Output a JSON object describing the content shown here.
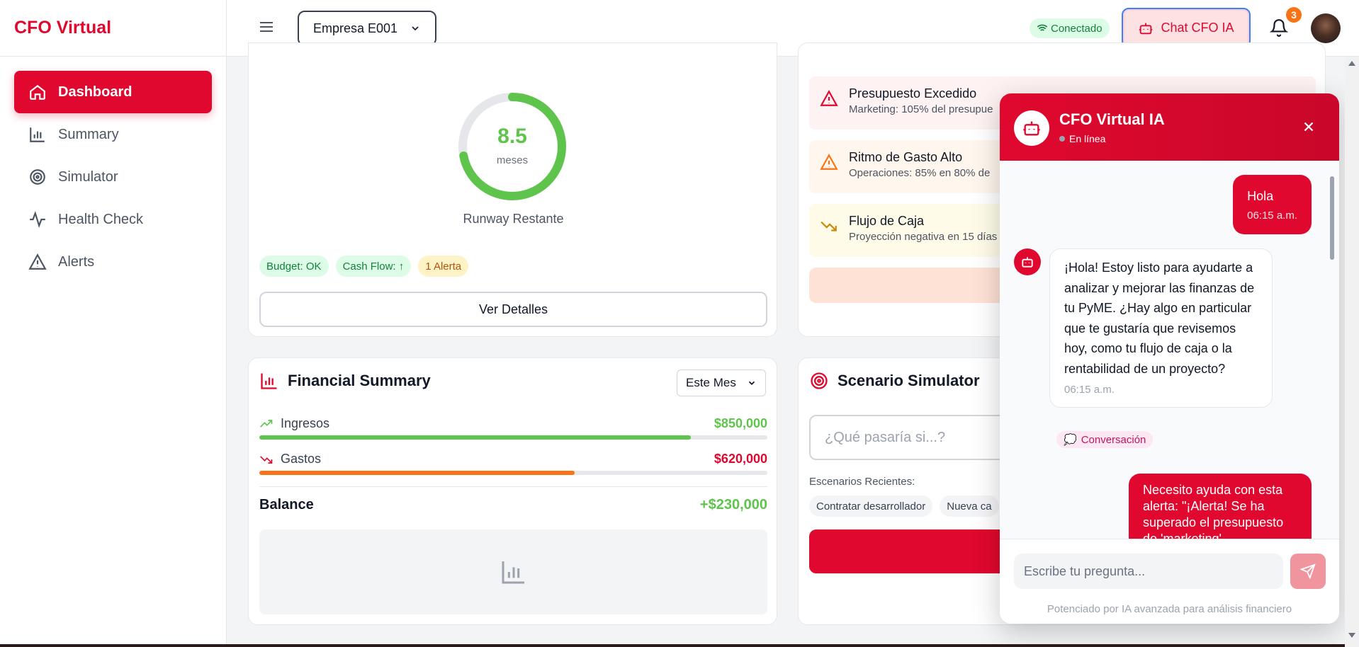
{
  "brand": "CFO Virtual",
  "sidebar": {
    "items": [
      {
        "label": "Dashboard",
        "icon": "home-icon",
        "active": true
      },
      {
        "label": "Summary",
        "icon": "bar-chart-icon"
      },
      {
        "label": "Simulator",
        "icon": "target-icon"
      },
      {
        "label": "Health Check",
        "icon": "activity-icon"
      },
      {
        "label": "Alerts",
        "icon": "warning-icon"
      }
    ]
  },
  "header": {
    "company": "Empresa E001",
    "status": "Conectado",
    "chat_button": "Chat CFO IA",
    "notifications": "3"
  },
  "runway": {
    "value": "8.5",
    "unit": "meses",
    "label": "Runway Restante",
    "progress": 0.72,
    "chips": [
      "Budget: OK",
      "Cash Flow: ↑",
      "1 Alerta"
    ],
    "details_button": "Ver Detalles"
  },
  "alerts": [
    {
      "title": "Presupuesto Excedido",
      "desc": "Marketing: 105% del presupue"
    },
    {
      "title": "Ritmo de Gasto Alto",
      "desc": "Operaciones: 85% en 80% de"
    },
    {
      "title": "Flujo de Caja",
      "desc": "Proyección negativa en 15 días"
    }
  ],
  "financial": {
    "title": "Financial Summary",
    "period": "Este Mes",
    "income_label": "Ingresos",
    "income_value": "$850,000",
    "income_fraction": 0.85,
    "expense_label": "Gastos",
    "expense_value": "$620,000",
    "expense_fraction": 0.62,
    "balance_label": "Balance",
    "balance_value": "+$230,000"
  },
  "simulator": {
    "title": "Scenario Simulator",
    "placeholder": "¿Qué pasaría si...?",
    "recent_label": "Escenarios Recientes:",
    "recent": [
      "Contratar desarrollador",
      "Nueva ca"
    ]
  },
  "chat": {
    "title": "CFO Virtual IA",
    "status": "En línea",
    "messages": {
      "user1": {
        "text": "Hola",
        "time": "06:15 a.m."
      },
      "bot1": {
        "text": "¡Hola! Estoy listo para ayudarte a analizar y mejorar las finanzas de tu PyME. ¿Hay algo en particular que te gustaría que revisemos hoy, como tu flujo de caja o la rentabilidad de un proyecto?",
        "time": "06:15 a.m."
      },
      "tag": "Conversación",
      "user2": {
        "text": "Necesito ayuda con esta alerta: \"¡Alerta! Se ha superado el presupuesto de 'marketing'."
      }
    },
    "input_placeholder": "Escribe tu pregunta...",
    "footnote": "Potenciado por IA avanzada para análisis financiero"
  },
  "colors": {
    "brand": "#e0082e",
    "success": "#5fc44b",
    "expense": "#f97316"
  }
}
